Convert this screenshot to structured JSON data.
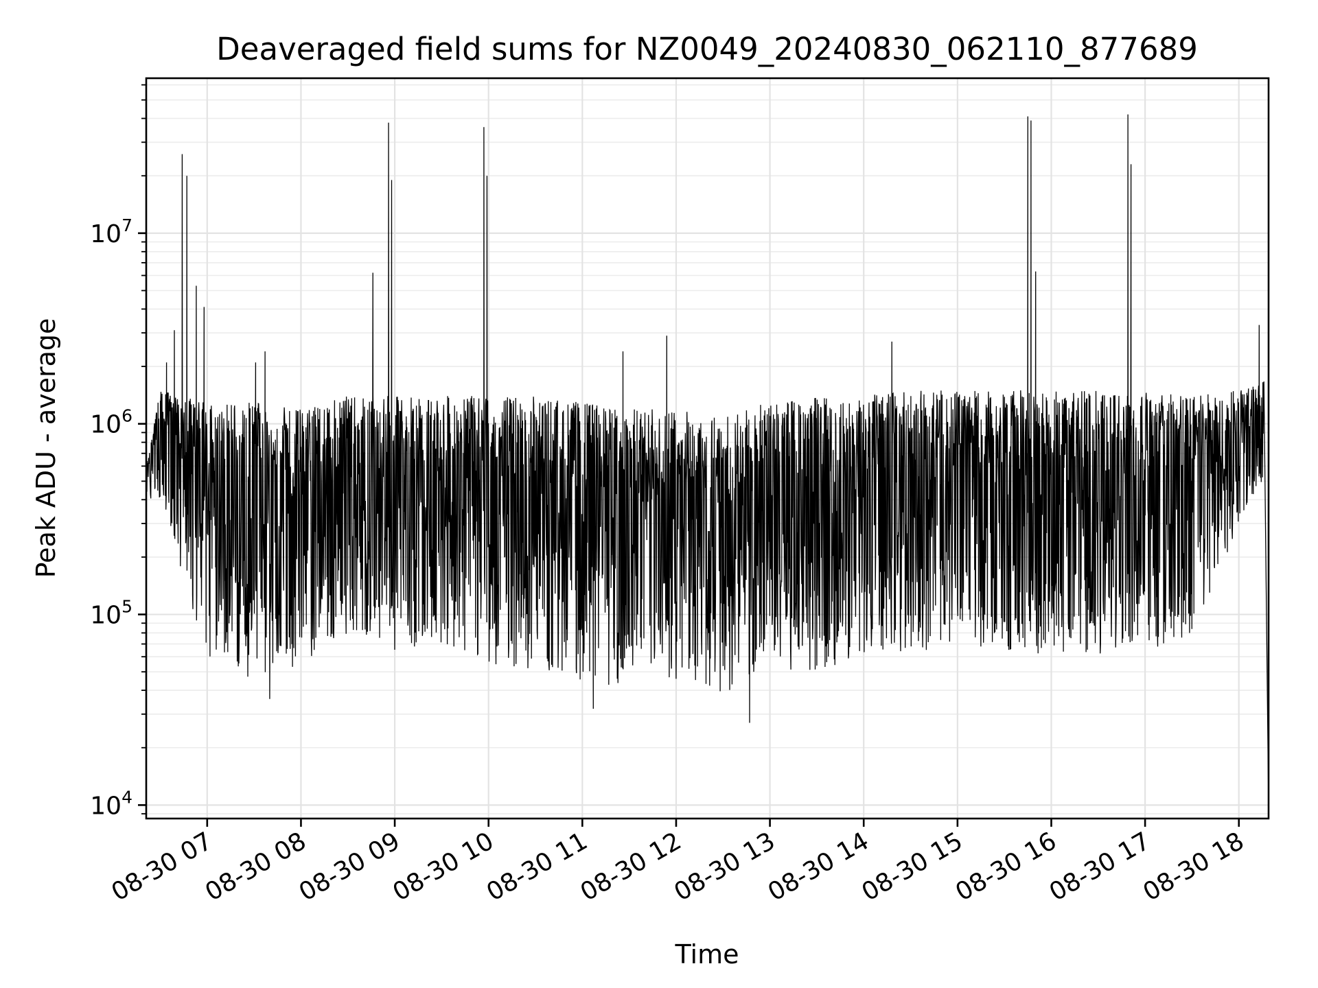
{
  "chart_data": {
    "type": "line",
    "title": "Deaveraged field sums for NZ0049_20240830_062110_877689",
    "xlabel": "Time",
    "ylabel": "Peak ADU - average",
    "yscale": "log",
    "ylim": [
      8500,
      65000000
    ],
    "xlim": [
      "2024-08-30 06:21",
      "2024-08-30 18:19"
    ],
    "grid": true,
    "line_color": "#000000",
    "x_ticks": [
      {
        "value": "2024-08-30 07:00",
        "label": "08-30 07"
      },
      {
        "value": "2024-08-30 08:00",
        "label": "08-30 08"
      },
      {
        "value": "2024-08-30 09:00",
        "label": "08-30 09"
      },
      {
        "value": "2024-08-30 10:00",
        "label": "08-30 10"
      },
      {
        "value": "2024-08-30 11:00",
        "label": "08-30 11"
      },
      {
        "value": "2024-08-30 12:00",
        "label": "08-30 12"
      },
      {
        "value": "2024-08-30 13:00",
        "label": "08-30 13"
      },
      {
        "value": "2024-08-30 14:00",
        "label": "08-30 14"
      },
      {
        "value": "2024-08-30 15:00",
        "label": "08-30 15"
      },
      {
        "value": "2024-08-30 16:00",
        "label": "08-30 16"
      },
      {
        "value": "2024-08-30 17:00",
        "label": "08-30 17"
      },
      {
        "value": "2024-08-30 18:00",
        "label": "08-30 18"
      }
    ],
    "y_ticks": [
      {
        "value": 10000,
        "base": "10",
        "exp": "4"
      },
      {
        "value": 100000,
        "base": "10",
        "exp": "5"
      },
      {
        "value": 1000000,
        "base": "10",
        "exp": "6"
      },
      {
        "value": 10000000,
        "base": "10",
        "exp": "7"
      }
    ],
    "series": [
      {
        "envelope": [
          {
            "x": "2024-08-30 06:21",
            "high": 600000,
            "low": 400000
          },
          {
            "x": "2024-08-30 06:30",
            "high": 1500000,
            "low": 400000
          },
          {
            "x": "2024-08-30 06:45",
            "high": 1400000,
            "low": 150000
          },
          {
            "x": "2024-08-30 07:00",
            "high": 1300000,
            "low": 60000
          },
          {
            "x": "2024-08-30 07:30",
            "high": 1300000,
            "low": 45000
          },
          {
            "x": "2024-08-30 08:00",
            "high": 1200000,
            "low": 55000
          },
          {
            "x": "2024-08-30 08:30",
            "high": 1400000,
            "low": 80000
          },
          {
            "x": "2024-08-30 09:00",
            "high": 1400000,
            "low": 65000
          },
          {
            "x": "2024-08-30 09:30",
            "high": 1400000,
            "low": 70000
          },
          {
            "x": "2024-08-30 10:00",
            "high": 1400000,
            "low": 55000
          },
          {
            "x": "2024-08-30 10:30",
            "high": 1400000,
            "low": 50000
          },
          {
            "x": "2024-08-30 11:00",
            "high": 1300000,
            "low": 45000
          },
          {
            "x": "2024-08-30 11:30",
            "high": 1200000,
            "low": 40000
          },
          {
            "x": "2024-08-30 12:00",
            "high": 1200000,
            "low": 45000
          },
          {
            "x": "2024-08-30 12:30",
            "high": 1100000,
            "low": 38000
          },
          {
            "x": "2024-08-30 13:00",
            "high": 1300000,
            "low": 50000
          },
          {
            "x": "2024-08-30 13:30",
            "high": 1400000,
            "low": 50000
          },
          {
            "x": "2024-08-30 14:00",
            "high": 1400000,
            "low": 60000
          },
          {
            "x": "2024-08-30 14:30",
            "high": 1500000,
            "low": 65000
          },
          {
            "x": "2024-08-30 15:00",
            "high": 1500000,
            "low": 65000
          },
          {
            "x": "2024-08-30 15:30",
            "high": 1500000,
            "low": 65000
          },
          {
            "x": "2024-08-30 16:00",
            "high": 1500000,
            "low": 60000
          },
          {
            "x": "2024-08-30 16:30",
            "high": 1500000,
            "low": 60000
          },
          {
            "x": "2024-08-30 17:00",
            "high": 1500000,
            "low": 60000
          },
          {
            "x": "2024-08-30 17:30",
            "high": 1400000,
            "low": 60000
          },
          {
            "x": "2024-08-30 18:00",
            "high": 1500000,
            "low": 300000
          },
          {
            "x": "2024-08-30 18:16",
            "high": 1700000,
            "low": 500000
          }
        ],
        "spikes": [
          {
            "x": "2024-08-30 06:34",
            "value": 2100000
          },
          {
            "x": "2024-08-30 06:39",
            "value": 3100000
          },
          {
            "x": "2024-08-30 06:44",
            "value": 26000000
          },
          {
            "x": "2024-08-30 06:47",
            "value": 20000000
          },
          {
            "x": "2024-08-30 06:53",
            "value": 5300000
          },
          {
            "x": "2024-08-30 06:58",
            "value": 4100000
          },
          {
            "x": "2024-08-30 07:31",
            "value": 2100000
          },
          {
            "x": "2024-08-30 07:37",
            "value": 2400000
          },
          {
            "x": "2024-08-30 08:46",
            "value": 6200000
          },
          {
            "x": "2024-08-30 08:56",
            "value": 38000000
          },
          {
            "x": "2024-08-30 08:58",
            "value": 19000000
          },
          {
            "x": "2024-08-30 09:57",
            "value": 36000000
          },
          {
            "x": "2024-08-30 09:59",
            "value": 20000000
          },
          {
            "x": "2024-08-30 11:26",
            "value": 2400000
          },
          {
            "x": "2024-08-30 11:54",
            "value": 2900000
          },
          {
            "x": "2024-08-30 14:18",
            "value": 2700000
          },
          {
            "x": "2024-08-30 15:45",
            "value": 41000000
          },
          {
            "x": "2024-08-30 15:47",
            "value": 39000000
          },
          {
            "x": "2024-08-30 15:50",
            "value": 6300000
          },
          {
            "x": "2024-08-30 16:49",
            "value": 42000000
          },
          {
            "x": "2024-08-30 16:51",
            "value": 23000000
          },
          {
            "x": "2024-08-30 18:13",
            "value": 3300000
          }
        ],
        "dips": [
          {
            "x": "2024-08-30 07:40",
            "value": 36000
          },
          {
            "x": "2024-08-30 11:07",
            "value": 32000
          },
          {
            "x": "2024-08-30 12:47",
            "value": 27000
          },
          {
            "x": "2024-08-30 18:19",
            "value": 10000
          }
        ]
      }
    ]
  }
}
